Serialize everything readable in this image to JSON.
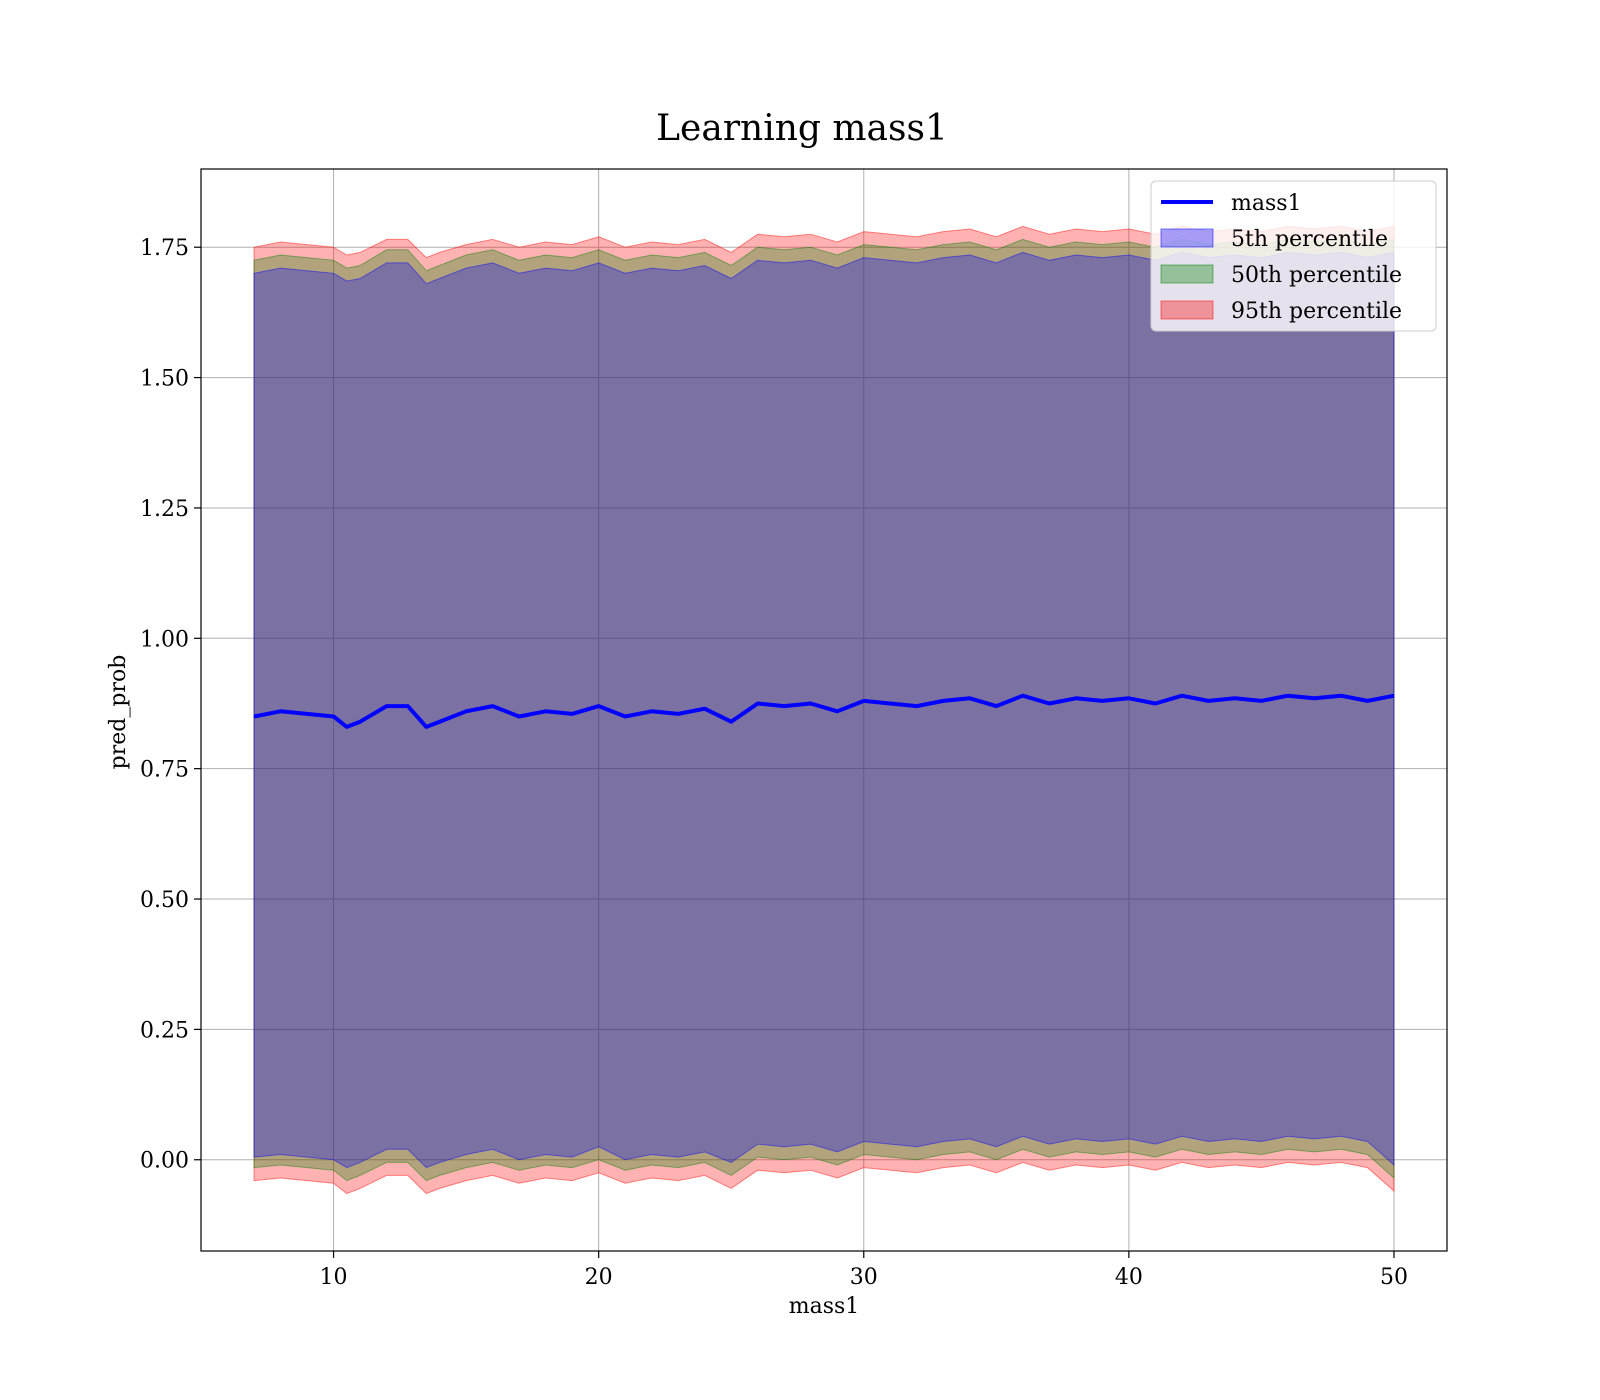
{
  "chart_data": {
    "type": "area",
    "title": "Learning mass1",
    "xlabel": "mass1",
    "ylabel": "pred_prob",
    "xlim": [
      5,
      52
    ],
    "ylim": [
      -0.175,
      1.9
    ],
    "x_ticks": [
      10,
      20,
      30,
      40,
      50
    ],
    "y_ticks": [
      0.0,
      0.25,
      0.5,
      0.75,
      1.0,
      1.25,
      1.5,
      1.75
    ],
    "x_tick_labels": [
      "10",
      "20",
      "30",
      "40",
      "50"
    ],
    "y_tick_labels": [
      "0.00",
      "0.25",
      "0.50",
      "0.75",
      "1.00",
      "1.25",
      "1.50",
      "1.75"
    ],
    "grid": true,
    "legend_position": "top-right",
    "legend": [
      {
        "label": "mass1",
        "kind": "line",
        "color": "#0000ff"
      },
      {
        "label": "5th percentile",
        "kind": "patch",
        "color": "#0000ff"
      },
      {
        "label": "50th percentile",
        "kind": "patch",
        "color": "#008000"
      },
      {
        "label": "95th percentile",
        "kind": "patch",
        "color": "#ff0000"
      }
    ],
    "x_range": [
      7,
      50
    ],
    "line": {
      "name": "mass1",
      "color": "#0000ff",
      "x": [
        7,
        8,
        9,
        10,
        10.5,
        11,
        12,
        12.8,
        13.5,
        14,
        15,
        16,
        17,
        18,
        19,
        20,
        21,
        22,
        23,
        24,
        25,
        26,
        27,
        28,
        29,
        30,
        31,
        32,
        33,
        34,
        35,
        36,
        37,
        38,
        39,
        40,
        41,
        42,
        43,
        44,
        45,
        46,
        47,
        48,
        49,
        50
      ],
      "y": [
        0.85,
        0.86,
        0.855,
        0.85,
        0.83,
        0.84,
        0.87,
        0.87,
        0.83,
        0.84,
        0.86,
        0.87,
        0.85,
        0.86,
        0.855,
        0.87,
        0.85,
        0.86,
        0.855,
        0.865,
        0.84,
        0.875,
        0.87,
        0.875,
        0.86,
        0.88,
        0.875,
        0.87,
        0.88,
        0.885,
        0.87,
        0.89,
        0.875,
        0.885,
        0.88,
        0.885,
        0.875,
        0.89,
        0.88,
        0.885,
        0.88,
        0.89,
        0.885,
        0.89,
        0.88,
        0.89
      ]
    },
    "series": [
      {
        "name": "95th percentile",
        "color": "#ff0000",
        "alpha": 0.3,
        "x": [
          7,
          8,
          9,
          10,
          10.5,
          11,
          12,
          12.8,
          13.5,
          14,
          15,
          16,
          17,
          18,
          19,
          20,
          21,
          22,
          23,
          24,
          25,
          26,
          27,
          28,
          29,
          30,
          31,
          32,
          33,
          34,
          35,
          36,
          37,
          38,
          39,
          40,
          41,
          42,
          43,
          44,
          45,
          46,
          47,
          48,
          49,
          50
        ],
        "upper": [
          1.75,
          1.76,
          1.755,
          1.75,
          1.735,
          1.74,
          1.765,
          1.765,
          1.73,
          1.74,
          1.755,
          1.765,
          1.75,
          1.76,
          1.755,
          1.77,
          1.75,
          1.76,
          1.755,
          1.765,
          1.74,
          1.775,
          1.77,
          1.775,
          1.76,
          1.78,
          1.775,
          1.77,
          1.78,
          1.785,
          1.77,
          1.79,
          1.775,
          1.785,
          1.78,
          1.785,
          1.775,
          1.79,
          1.78,
          1.785,
          1.78,
          1.79,
          1.785,
          1.79,
          1.78,
          1.79
        ],
        "lower": [
          -0.04,
          -0.035,
          -0.04,
          -0.045,
          -0.065,
          -0.055,
          -0.03,
          -0.03,
          -0.065,
          -0.055,
          -0.04,
          -0.03,
          -0.045,
          -0.035,
          -0.04,
          -0.025,
          -0.045,
          -0.035,
          -0.04,
          -0.03,
          -0.055,
          -0.02,
          -0.025,
          -0.02,
          -0.035,
          -0.015,
          -0.02,
          -0.025,
          -0.015,
          -0.01,
          -0.025,
          -0.005,
          -0.02,
          -0.01,
          -0.015,
          -0.01,
          -0.02,
          -0.005,
          -0.015,
          -0.01,
          -0.015,
          -0.005,
          -0.01,
          -0.005,
          -0.015,
          -0.06
        ]
      },
      {
        "name": "50th percentile",
        "color": "#008000",
        "alpha": 0.3,
        "x": [
          7,
          8,
          9,
          10,
          10.5,
          11,
          12,
          12.8,
          13.5,
          14,
          15,
          16,
          17,
          18,
          19,
          20,
          21,
          22,
          23,
          24,
          25,
          26,
          27,
          28,
          29,
          30,
          31,
          32,
          33,
          34,
          35,
          36,
          37,
          38,
          39,
          40,
          41,
          42,
          43,
          44,
          45,
          46,
          47,
          48,
          49,
          50
        ],
        "upper": [
          1.725,
          1.735,
          1.73,
          1.725,
          1.71,
          1.715,
          1.745,
          1.745,
          1.705,
          1.715,
          1.735,
          1.745,
          1.725,
          1.735,
          1.73,
          1.745,
          1.725,
          1.735,
          1.73,
          1.74,
          1.715,
          1.75,
          1.745,
          1.75,
          1.735,
          1.755,
          1.75,
          1.745,
          1.755,
          1.76,
          1.745,
          1.765,
          1.75,
          1.76,
          1.755,
          1.76,
          1.75,
          1.765,
          1.755,
          1.76,
          1.755,
          1.765,
          1.76,
          1.765,
          1.755,
          1.765
        ],
        "lower": [
          -0.015,
          -0.01,
          -0.015,
          -0.02,
          -0.04,
          -0.03,
          -0.005,
          -0.005,
          -0.04,
          -0.03,
          -0.015,
          -0.005,
          -0.02,
          -0.01,
          -0.015,
          0.0,
          -0.02,
          -0.01,
          -0.015,
          -0.005,
          -0.03,
          0.005,
          0.0,
          0.005,
          -0.01,
          0.01,
          0.005,
          0.0,
          0.01,
          0.015,
          0.0,
          0.02,
          0.005,
          0.015,
          0.01,
          0.015,
          0.005,
          0.02,
          0.01,
          0.015,
          0.01,
          0.02,
          0.015,
          0.02,
          0.01,
          -0.035
        ]
      },
      {
        "name": "5th percentile",
        "color": "#0000ff",
        "alpha": 0.3,
        "x": [
          7,
          8,
          9,
          10,
          10.5,
          11,
          12,
          12.8,
          13.5,
          14,
          15,
          16,
          17,
          18,
          19,
          20,
          21,
          22,
          23,
          24,
          25,
          26,
          27,
          28,
          29,
          30,
          31,
          32,
          33,
          34,
          35,
          36,
          37,
          38,
          39,
          40,
          41,
          42,
          43,
          44,
          45,
          46,
          47,
          48,
          49,
          50
        ],
        "upper": [
          1.7,
          1.71,
          1.705,
          1.7,
          1.685,
          1.69,
          1.72,
          1.72,
          1.68,
          1.69,
          1.71,
          1.72,
          1.7,
          1.71,
          1.705,
          1.72,
          1.7,
          1.71,
          1.705,
          1.715,
          1.69,
          1.725,
          1.72,
          1.725,
          1.71,
          1.73,
          1.725,
          1.72,
          1.73,
          1.735,
          1.72,
          1.74,
          1.725,
          1.735,
          1.73,
          1.735,
          1.725,
          1.74,
          1.73,
          1.735,
          1.73,
          1.74,
          1.735,
          1.74,
          1.73,
          1.74
        ],
        "lower": [
          0.005,
          0.01,
          0.005,
          0.0,
          -0.015,
          -0.005,
          0.02,
          0.02,
          -0.015,
          -0.005,
          0.01,
          0.02,
          0.0,
          0.01,
          0.005,
          0.025,
          0.0,
          0.01,
          0.005,
          0.015,
          -0.005,
          0.03,
          0.025,
          0.03,
          0.015,
          0.035,
          0.03,
          0.025,
          0.035,
          0.04,
          0.025,
          0.045,
          0.03,
          0.04,
          0.035,
          0.04,
          0.03,
          0.045,
          0.035,
          0.04,
          0.035,
          0.045,
          0.04,
          0.045,
          0.035,
          -0.01
        ]
      }
    ]
  },
  "colors": {
    "line": "#0000ff",
    "grid": "#b0b0b0",
    "legend_border": "#cccccc"
  }
}
